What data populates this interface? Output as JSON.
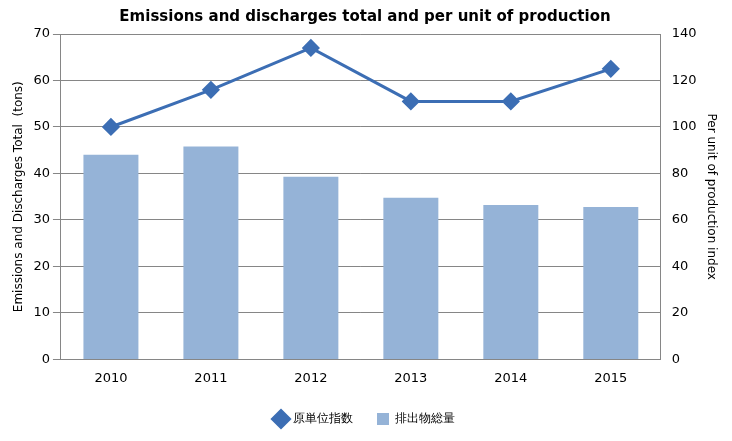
{
  "chart_data": {
    "type": "bar",
    "title": "Emissions and discharges total and per unit of production",
    "categories": [
      "2010",
      "2011",
      "2012",
      "2013",
      "2014",
      "2015"
    ],
    "series": [
      {
        "name": "排出物総量",
        "type": "bar",
        "color": "#95b3d7",
        "axis": "y",
        "values": [
          44,
          45.8,
          39.3,
          34.8,
          33.2,
          32.8
        ]
      },
      {
        "name": "原単位指数",
        "type": "line",
        "color": "#3c6eb4",
        "marker": "diamond",
        "axis": "y2",
        "values": [
          100,
          116,
          134,
          111,
          111,
          125
        ]
      }
    ],
    "y_label": "Emissions and Discharges Total  (tons)",
    "y2_label": "Per unit of production index",
    "ylim": [
      0,
      70
    ],
    "yticks": [
      0,
      10,
      20,
      30,
      40,
      50,
      60,
      70
    ],
    "y2lim": [
      0,
      140
    ],
    "y2ticks": [
      0,
      20,
      40,
      60,
      80,
      100,
      120,
      140
    ],
    "grid": true,
    "legend": "bottom"
  }
}
